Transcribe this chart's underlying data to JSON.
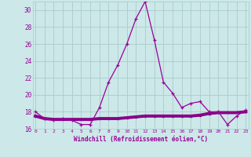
{
  "xlabel": "Windchill (Refroidissement éolien,°C)",
  "x": [
    0,
    1,
    2,
    3,
    4,
    5,
    6,
    7,
    8,
    9,
    10,
    11,
    12,
    13,
    14,
    15,
    16,
    17,
    18,
    19,
    20,
    21,
    22,
    23
  ],
  "y_curve": [
    18,
    17.2,
    17,
    17.2,
    17,
    16.5,
    16.5,
    18.5,
    21.5,
    23.5,
    26,
    29,
    31,
    26.5,
    21.5,
    20.2,
    18.5,
    19,
    19.2,
    18,
    18,
    16.5,
    17.5,
    18.2
  ],
  "y_flat": [
    17.5,
    17.2,
    17.1,
    17.1,
    17.1,
    17.1,
    17.1,
    17.2,
    17.2,
    17.2,
    17.3,
    17.4,
    17.5,
    17.5,
    17.5,
    17.5,
    17.5,
    17.5,
    17.6,
    17.8,
    17.9,
    17.9,
    17.9,
    18.0
  ],
  "ylim": [
    16,
    31
  ],
  "yticks": [
    16,
    18,
    20,
    22,
    24,
    26,
    28,
    30
  ],
  "xticks": [
    0,
    1,
    2,
    3,
    4,
    5,
    6,
    7,
    8,
    9,
    10,
    11,
    12,
    13,
    14,
    15,
    16,
    17,
    18,
    19,
    20,
    21,
    22,
    23
  ],
  "line_color": "#990099",
  "flat_color": "#880088",
  "bg_color": "#cce8e8",
  "grid_color": "#aacccc",
  "text_color": "#990099",
  "marker_color": "#990099"
}
